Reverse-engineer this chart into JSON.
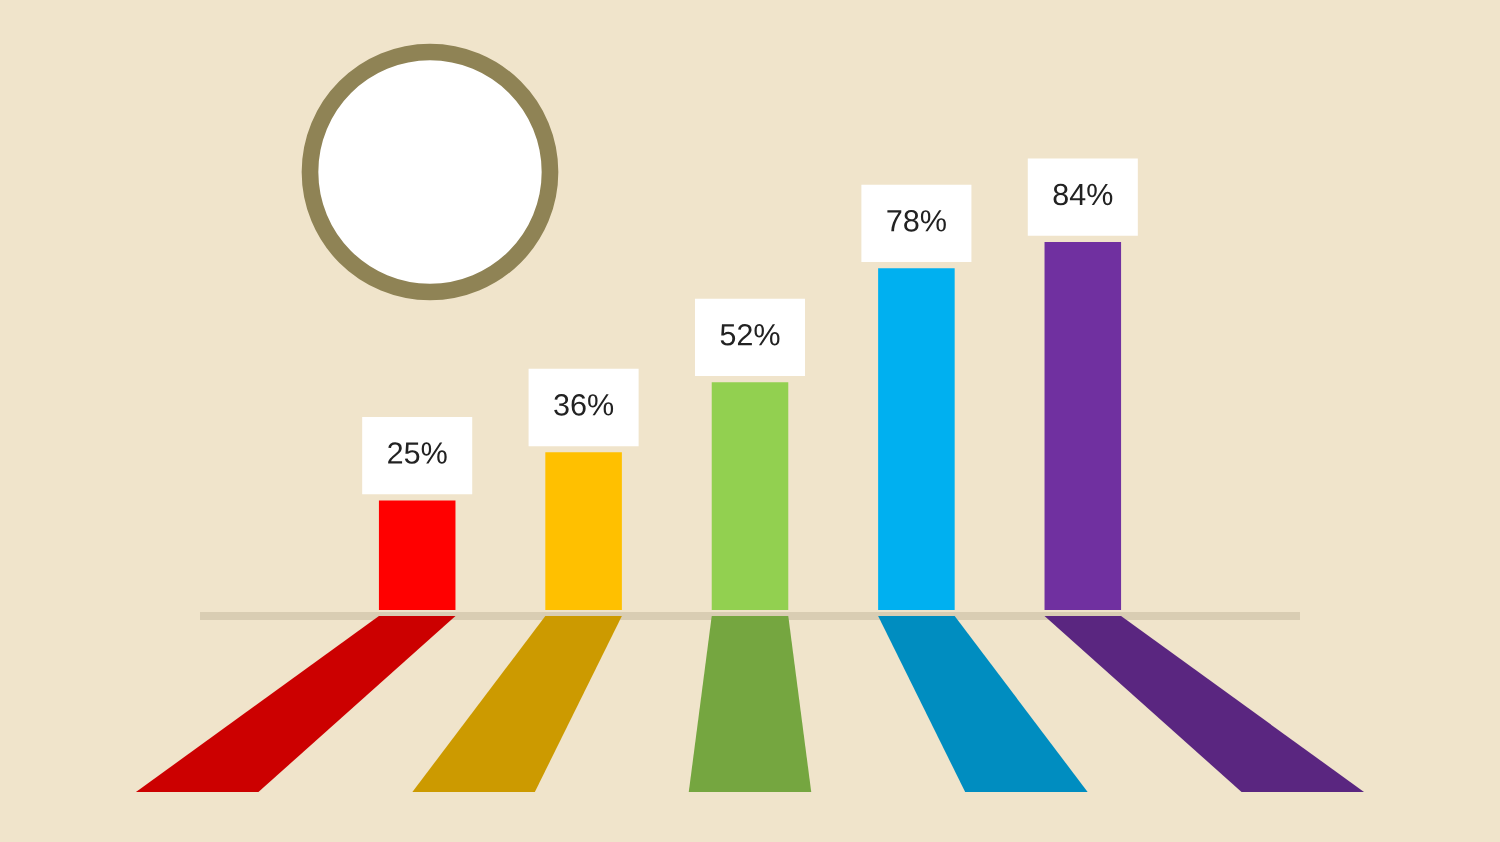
{
  "chart_data": {
    "type": "bar",
    "categories": [
      null,
      null,
      null,
      null,
      null
    ],
    "values": [
      25,
      36,
      52,
      78,
      84
    ],
    "colors": [
      "#ff0000",
      "#ffc000",
      "#92d050",
      "#00b0f0",
      "#7030a0"
    ],
    "value_labels": [
      "25%",
      "36%",
      "52%",
      "78%",
      "84%"
    ]
  }
}
